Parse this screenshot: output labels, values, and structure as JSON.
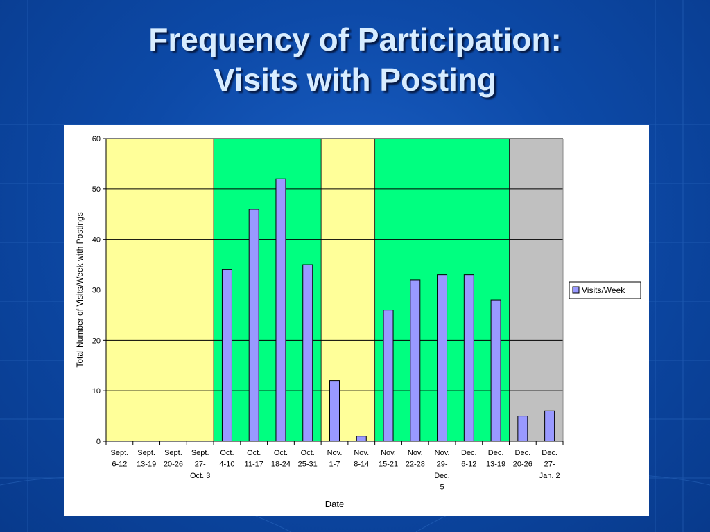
{
  "slide": {
    "title_line1": "Frequency of Participation:",
    "title_line2": "Visits with Posting"
  },
  "colors": {
    "bar_fill": "#9999ff",
    "band_yellow": "#ffff99",
    "band_green": "#00ff80",
    "band_gray": "#c0c0c0"
  },
  "chart_data": {
    "type": "bar",
    "title": "",
    "xlabel": "Date",
    "ylabel": "Total Number of Visits/Week with Postings",
    "ylim": [
      0,
      60
    ],
    "yticks": [
      0,
      10,
      20,
      30,
      40,
      50,
      60
    ],
    "grid": true,
    "legend_position": "right",
    "categories": [
      [
        "Sept.",
        "6-12"
      ],
      [
        "Sept.",
        "13-19"
      ],
      [
        "Sept.",
        "20-26"
      ],
      [
        "Sept.",
        "27-",
        "Oct. 3"
      ],
      [
        "Oct.",
        "4-10"
      ],
      [
        "Oct.",
        "11-17"
      ],
      [
        "Oct.",
        "18-24"
      ],
      [
        "Oct.",
        "25-31"
      ],
      [
        "Nov.",
        "1-7"
      ],
      [
        "Nov.",
        "8-14"
      ],
      [
        "Nov.",
        "15-21"
      ],
      [
        "Nov.",
        "22-28"
      ],
      [
        "Nov.",
        "29-",
        "Dec.",
        "5"
      ],
      [
        "Dec.",
        "6-12"
      ],
      [
        "Dec.",
        "13-19"
      ],
      [
        "Dec.",
        "20-26"
      ],
      [
        "Dec.",
        "27-",
        "Jan. 2"
      ]
    ],
    "series": [
      {
        "name": "Visits/Week",
        "values": [
          0,
          0,
          0,
          0,
          34,
          46,
          52,
          35,
          12,
          1,
          26,
          32,
          33,
          33,
          28,
          5,
          6
        ]
      }
    ],
    "background_bands": [
      {
        "from_index": 0,
        "to_index": 3,
        "color": "yellow"
      },
      {
        "from_index": 4,
        "to_index": 7,
        "color": "green"
      },
      {
        "from_index": 8,
        "to_index": 9,
        "color": "yellow"
      },
      {
        "from_index": 10,
        "to_index": 14,
        "color": "green"
      },
      {
        "from_index": 15,
        "to_index": 16,
        "color": "gray"
      }
    ]
  }
}
